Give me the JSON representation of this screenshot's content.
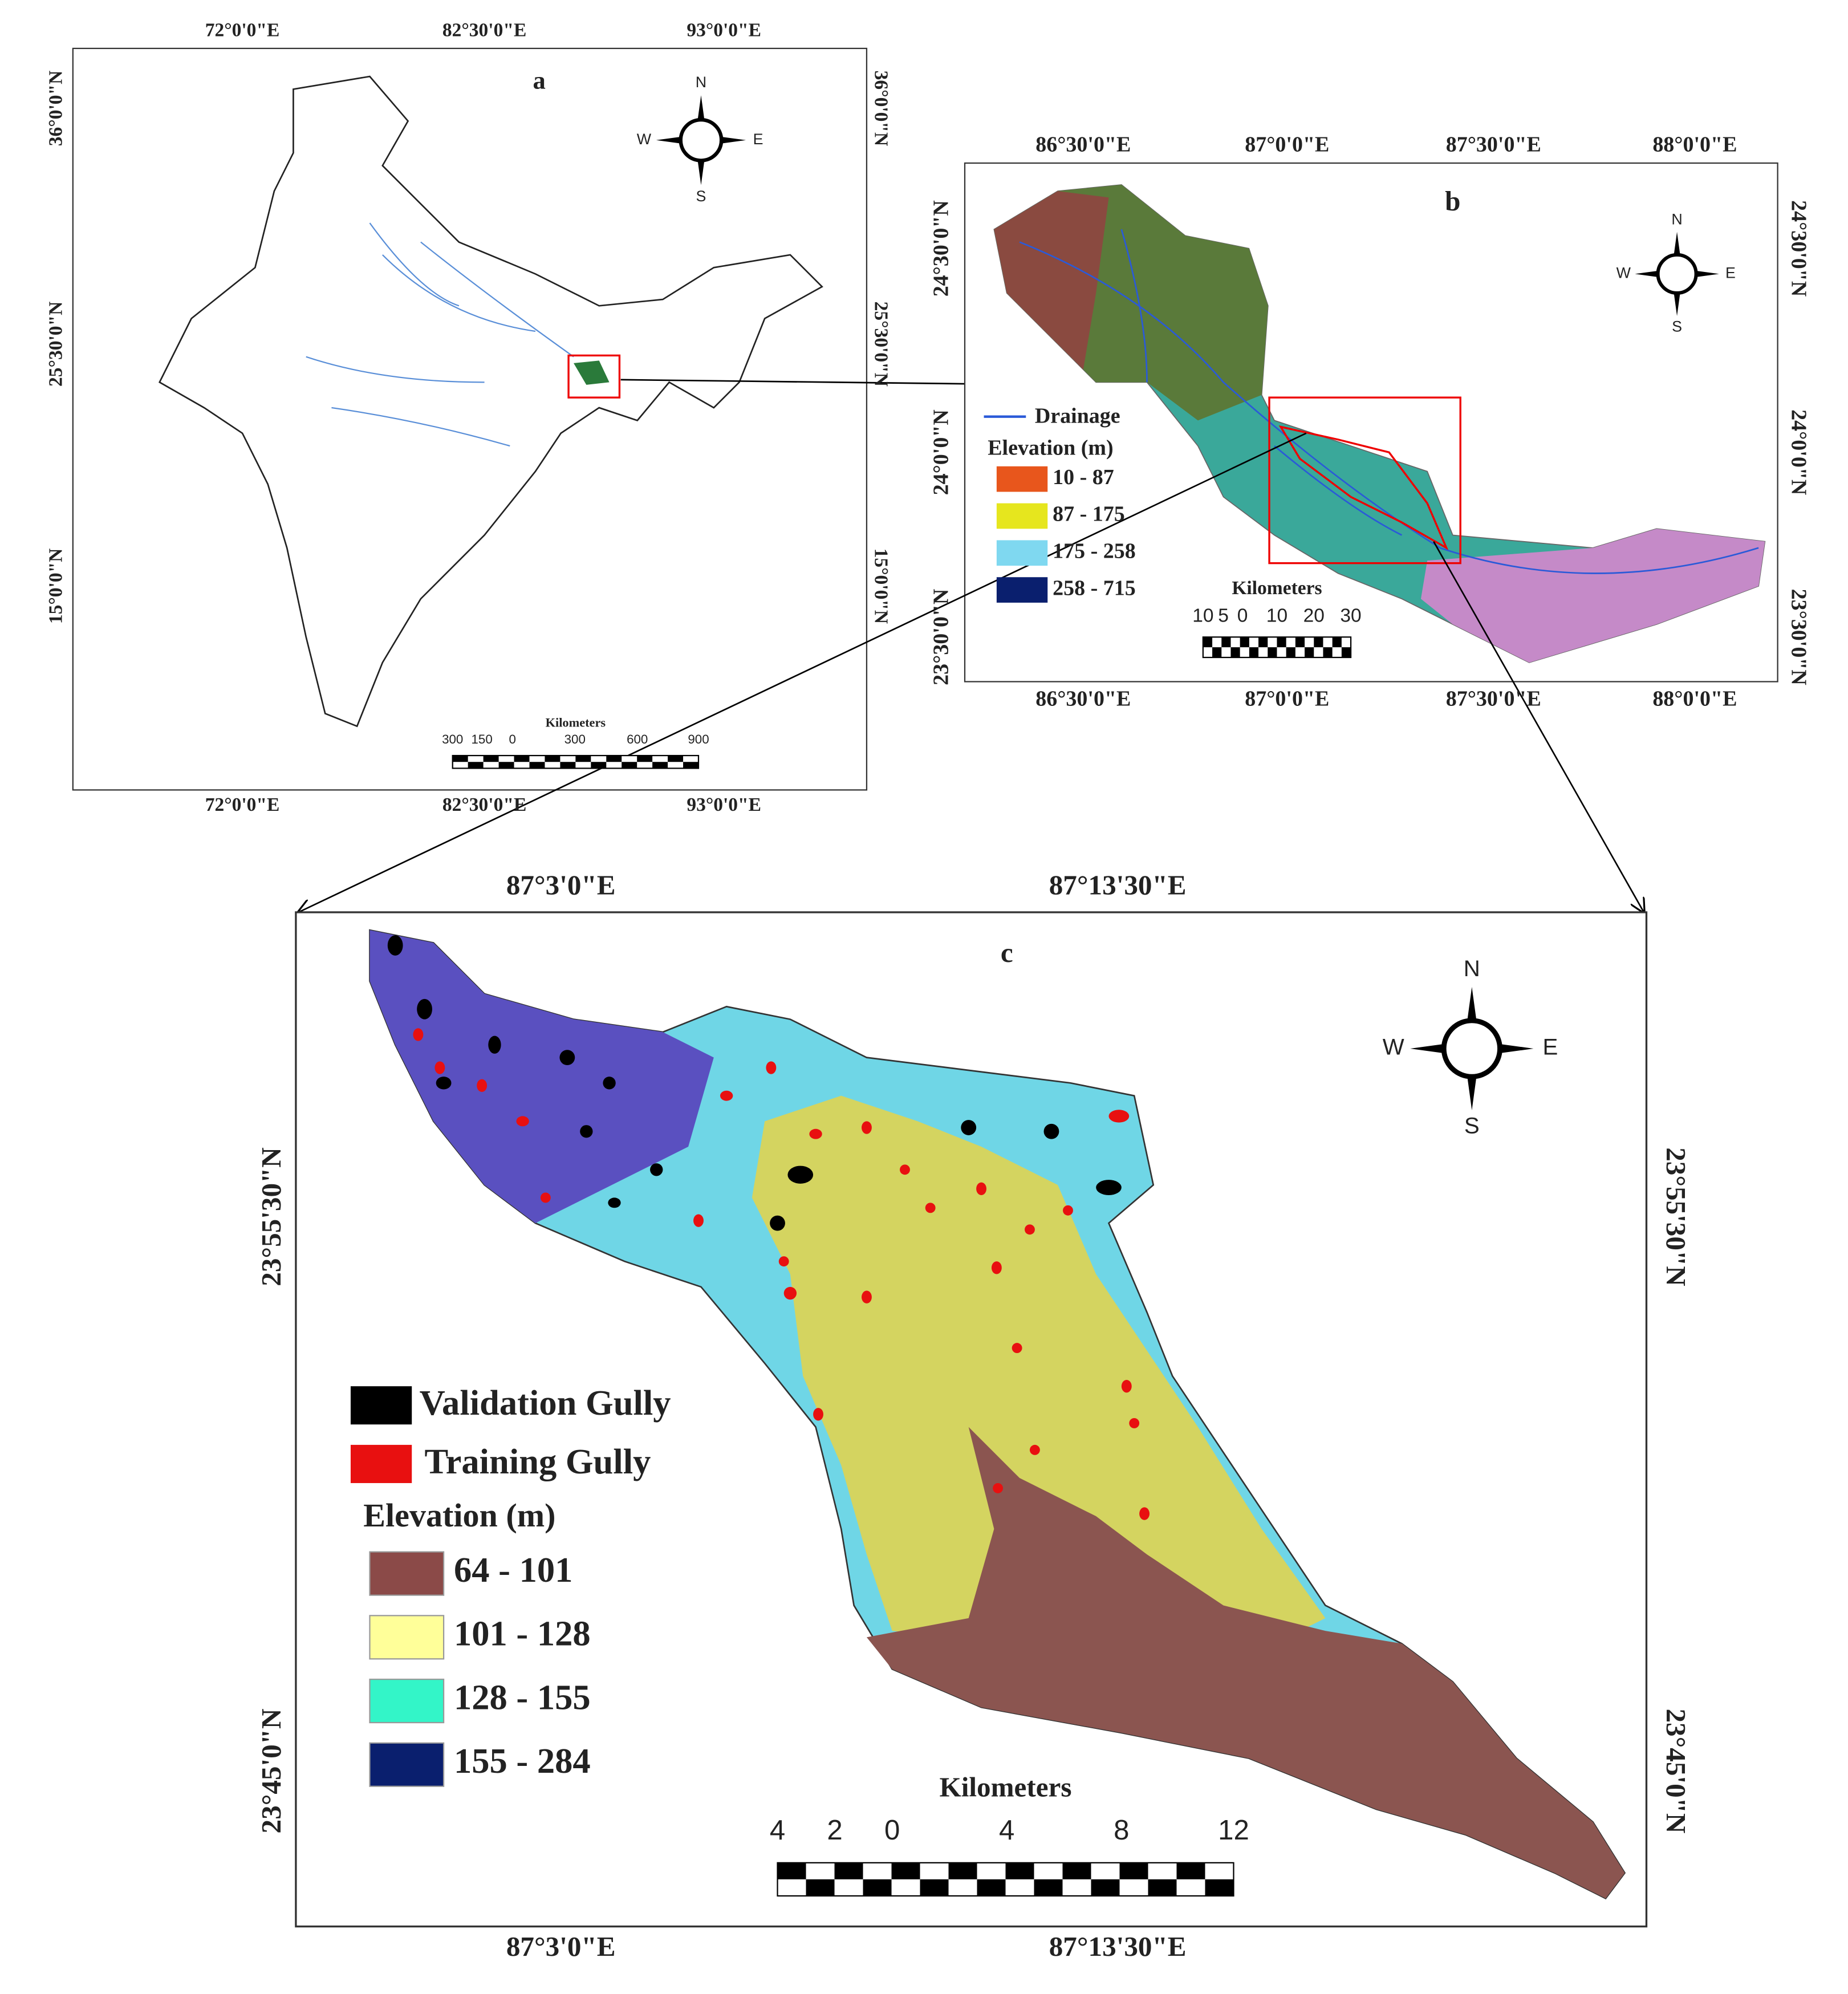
{
  "panel_a": {
    "label": "a",
    "x_labels": [
      "72°0'0\"E",
      "82°30'0\"E",
      "93°0'0\"E"
    ],
    "y_labels": [
      "36°0'0\"N",
      "25°30'0\"N",
      "15°0'0\"N"
    ],
    "compass": {
      "n": "N",
      "s": "S",
      "e": "E",
      "w": "W"
    },
    "scale": {
      "title": "Kilometers",
      "ticks": [
        "300",
        "150",
        "0",
        "300",
        "600",
        "900"
      ]
    }
  },
  "panel_b": {
    "label": "b",
    "x_labels": [
      "86°30'0\"E",
      "87°0'0\"E",
      "87°30'0\"E",
      "88°0'0\"E"
    ],
    "y_labels": [
      "24°30'0\"N",
      "24°0'0\"N",
      "23°30'0\"N"
    ],
    "compass": {
      "n": "N",
      "s": "S",
      "e": "E",
      "w": "W"
    },
    "legend": {
      "drainage": "Drainage",
      "elevation_title": "Elevation (m)",
      "items": [
        {
          "label": "10 - 87",
          "color": "#e8561c"
        },
        {
          "label": "87 - 175",
          "color": "#e6e61e"
        },
        {
          "label": "175 - 258",
          "color": "#7fd8f0"
        },
        {
          "label": "258 - 715",
          "color": "#0a1f6e"
        }
      ]
    },
    "scale": {
      "title": "Kilometers",
      "ticks": [
        "10",
        "5",
        "0",
        "10",
        "20",
        "30"
      ]
    }
  },
  "panel_c": {
    "label": "c",
    "x_labels": [
      "87°3'0\"E",
      "87°13'30\"E"
    ],
    "y_labels": [
      "23°55'30\"N",
      "23°45'0\"N"
    ],
    "compass": {
      "n": "N",
      "s": "S",
      "e": "E",
      "w": "W"
    },
    "legend": {
      "validation": "Validation Gully",
      "training": "Training Gully",
      "elevation_title": "Elevation (m)",
      "items": [
        {
          "label": "64 - 101",
          "color": "#8b4a48"
        },
        {
          "label": "101 - 128",
          "color": "#ffff99"
        },
        {
          "label": "128 - 155",
          "color": "#33f5c8"
        },
        {
          "label": "155 - 284",
          "color": "#0a1f6e"
        }
      ]
    },
    "scale": {
      "title": "Kilometers",
      "ticks": [
        "4",
        "2",
        "0",
        "4",
        "8",
        "12"
      ]
    }
  }
}
